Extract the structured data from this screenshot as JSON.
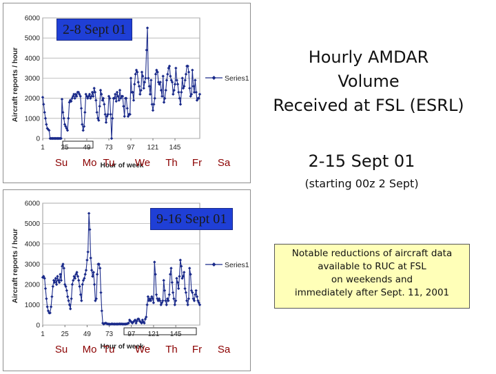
{
  "chart_data": [
    {
      "type": "line",
      "period_label": "2-8 Sept 01",
      "ylabel": "Aircraft reports / hour",
      "xlabel": "Hour of week",
      "ylim": [
        0,
        6000
      ],
      "yticks": [
        0,
        1000,
        2000,
        3000,
        4000,
        5000,
        6000
      ],
      "xticks": [
        1,
        25,
        49,
        73,
        97,
        121,
        145
      ],
      "xtick_labels": [
        "1",
        "25",
        "49",
        "73",
        "97",
        "121",
        "145"
      ],
      "days": [
        "Su",
        "Mo",
        "Tu",
        "We",
        "Th",
        "Fr",
        "Sa"
      ],
      "legend": "Series1",
      "series": [
        {
          "name": "Series1",
          "values": [
            2050,
            1700,
            1300,
            1000,
            700,
            500,
            450,
            400,
            0,
            0,
            0,
            0,
            0,
            0,
            0,
            0,
            0,
            0,
            0,
            0,
            0,
            1950,
            1300,
            1000,
            700,
            600,
            500,
            400,
            1000,
            1800,
            1900,
            1850,
            2000,
            2100,
            2200,
            2000,
            2200,
            2100,
            2300,
            2300,
            2200,
            2100,
            1500,
            700,
            400,
            600,
            1300,
            2200,
            2100,
            2000,
            2100,
            2200,
            2000,
            2100,
            2300,
            2100,
            2500,
            2300,
            1900,
            1300,
            1000,
            900,
            1600,
            2400,
            2200,
            1900,
            2000,
            1700,
            1200,
            800,
            1100,
            1200,
            2100,
            2000,
            1200,
            0,
            1000,
            2000,
            2000,
            2200,
            1850,
            2300,
            2100,
            1900,
            2400,
            2000,
            2100,
            2100,
            1600,
            1100,
            2000,
            2000,
            1500,
            1100,
            1200,
            1200,
            3000,
            2300,
            2300,
            1900,
            2700,
            3200,
            3400,
            3300,
            2800,
            2600,
            2200,
            2400,
            3300,
            3100,
            2500,
            2800,
            3000,
            4400,
            5500,
            3000,
            2600,
            2200,
            2900,
            1700,
            1400,
            1700,
            2000,
            3200,
            3400,
            3300,
            2800,
            2700,
            2800,
            2400,
            2100,
            3100,
            1800,
            2000,
            2400,
            2900,
            3200,
            3500,
            3600,
            3100,
            2900,
            2800,
            2200,
            2400,
            2700,
            3500,
            2900,
            2700,
            2300,
            2000,
            1700,
            2300,
            3000,
            2500,
            2600,
            2900,
            3200,
            3600,
            3600,
            3300,
            2500,
            2100,
            2200,
            3400,
            2600,
            2300,
            2900,
            2300,
            1900,
            2000,
            2000,
            2200
          ]
        }
      ]
    },
    {
      "type": "line",
      "period_label": "9-16 Sept 01",
      "ylabel": "Aircraft reports / hour",
      "xlabel": "Hour of week",
      "ylim": [
        0,
        6000
      ],
      "yticks": [
        0,
        1000,
        2000,
        3000,
        4000,
        5000,
        6000
      ],
      "xticks": [
        1,
        25,
        49,
        73,
        97,
        121,
        145
      ],
      "xtick_labels": [
        "1",
        "25",
        "49",
        "73",
        "97",
        "121",
        "145"
      ],
      "days": [
        "Su",
        "Mo",
        "Tu",
        "We",
        "Th",
        "Fr",
        "Sa"
      ],
      "legend": "Series1",
      "series": [
        {
          "name": "Series1",
          "values": [
            2350,
            2400,
            2300,
            1800,
            1300,
            900,
            700,
            600,
            600,
            900,
            1400,
            1900,
            2200,
            2100,
            2300,
            2000,
            2400,
            2200,
            2100,
            2500,
            2200,
            2900,
            3000,
            2800,
            2000,
            1900,
            1700,
            1400,
            1200,
            1000,
            800,
            1300,
            2000,
            2200,
            2400,
            2300,
            2500,
            2600,
            2400,
            2200,
            1900,
            1500,
            1200,
            2000,
            2200,
            2300,
            2500,
            2700,
            3200,
            3600,
            5500,
            4700,
            3300,
            2700,
            2400,
            2600,
            2000,
            1200,
            1300,
            2500,
            3000,
            3000,
            2800,
            1600,
            700,
            100,
            50,
            80,
            100,
            80,
            60,
            50,
            50,
            40,
            50,
            60,
            50,
            50,
            50,
            50,
            50,
            50,
            50,
            60,
            50,
            60,
            50,
            50,
            50,
            50,
            50,
            60,
            80,
            100,
            250,
            200,
            150,
            100,
            150,
            200,
            250,
            100,
            200,
            300,
            300,
            200,
            150,
            100,
            250,
            150,
            100,
            300,
            400,
            1000,
            1400,
            1200,
            1300,
            1200,
            1400,
            1300,
            1100,
            3100,
            2500,
            1500,
            1300,
            1200,
            1300,
            1200,
            1000,
            1100,
            1200,
            2200,
            1700,
            1200,
            1000,
            1300,
            1200,
            1500,
            2500,
            2800,
            2100,
            1600,
            1300,
            1000,
            1200,
            2300,
            2100,
            1800,
            2400,
            3200,
            2900,
            2300,
            2400,
            2600,
            1800,
            1600,
            1200,
            1000,
            1300,
            2800,
            2500,
            1700,
            1600,
            1300,
            1200,
            1500,
            1700,
            1400,
            1200,
            1100,
            1000
          ]
        }
      ]
    }
  ],
  "right": {
    "title_lines": [
      "Hourly AMDAR",
      "Volume",
      "Received at FSL (ESRL)"
    ],
    "subtitle": "2-15 Sept 01",
    "subnote": "(starting 00z 2 Sept)",
    "note_lines": [
      "Notable reductions of aircraft data",
      "available to RUC at FSL",
      "on weekends and",
      "immediately after Sept. 11, 2001"
    ]
  },
  "colors": {
    "series": "#1a2a8a",
    "day_text": "#8b0000",
    "label_box": "#1f3fd6",
    "note_bg": "#ffffb8"
  }
}
